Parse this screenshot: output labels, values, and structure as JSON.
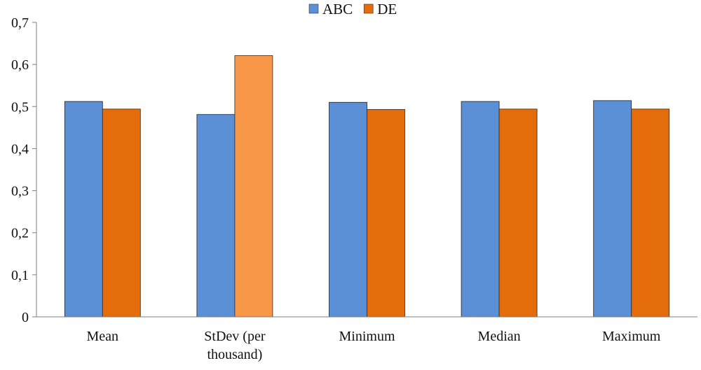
{
  "chart_data": {
    "type": "bar",
    "title": "",
    "xlabel": "",
    "ylabel": "",
    "ylim": [
      0,
      0.7
    ],
    "yticks": [
      "0",
      "0,1",
      "0,2",
      "0,3",
      "0,4",
      "0,5",
      "0,6",
      "0,7"
    ],
    "ytick_values": [
      0,
      0.1,
      0.2,
      0.3,
      0.4,
      0.5,
      0.6,
      0.7
    ],
    "grid": false,
    "legend_position": "top-center",
    "categories": [
      [
        "Mean"
      ],
      [
        "StDev (per",
        "thousand)"
      ],
      [
        "Minimum"
      ],
      [
        "Median"
      ],
      [
        "Maximum"
      ]
    ],
    "series": [
      {
        "name": "ABC",
        "color": "#5B8FD6",
        "values": [
          0.512,
          0.481,
          0.51,
          0.512,
          0.514
        ]
      },
      {
        "name": "DE",
        "color": "#E46C0A",
        "values": [
          0.494,
          0.621,
          0.493,
          0.494,
          0.494
        ]
      }
    ],
    "highlight": {
      "series": 1,
      "category": 1,
      "color": "#F79646"
    }
  }
}
